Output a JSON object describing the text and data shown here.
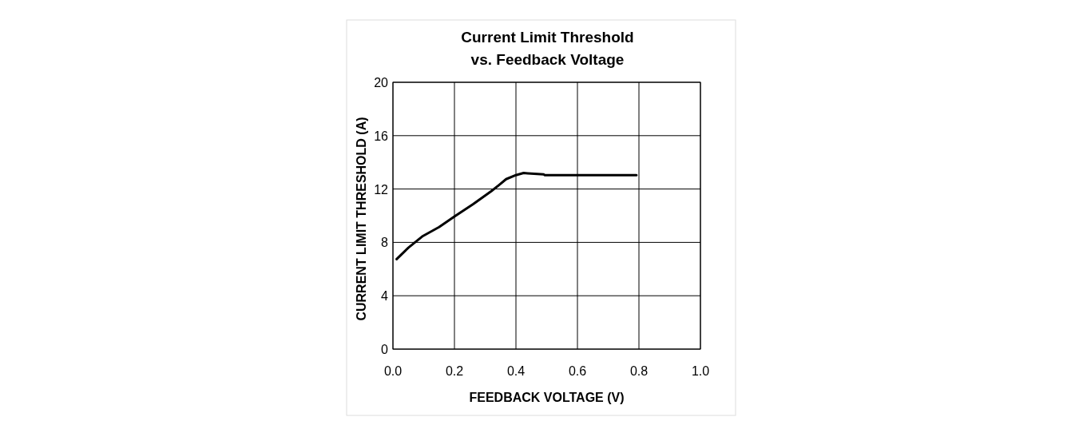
{
  "chart_data": {
    "type": "line",
    "title": "Current Limit Threshold\nvs. Feedback Voltage",
    "xlabel": "FEEDBACK VOLTAGE (V)",
    "ylabel": "CURRENT LIMIT THRESHOLD (A)",
    "x": [
      0.012,
      0.05,
      0.095,
      0.15,
      0.2,
      0.26,
      0.32,
      0.345,
      0.368,
      0.4,
      0.425,
      0.438,
      0.49,
      0.494,
      0.6,
      0.7,
      0.792
    ],
    "series": [
      {
        "color": "#000000",
        "values": [
          6.74,
          7.6,
          8.44,
          9.15,
          9.94,
          10.85,
          11.84,
          12.3,
          12.74,
          13.04,
          13.2,
          13.18,
          13.1,
          13.04,
          13.04,
          13.04,
          13.04
        ]
      }
    ],
    "xlim": [
      0,
      1
    ],
    "xticks": [
      {
        "value": 0,
        "label": "0.0"
      },
      0.2,
      0.4,
      0.6,
      0.8,
      {
        "value": 1,
        "label": "1.0"
      }
    ],
    "ylim": [
      0,
      20
    ],
    "yticks": [
      0,
      4,
      8,
      12,
      16,
      20
    ],
    "grid": true,
    "line_style": "solid",
    "marker": "none"
  }
}
